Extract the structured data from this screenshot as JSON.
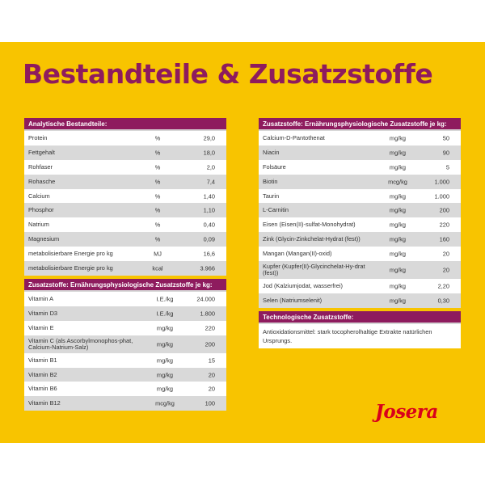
{
  "title": "Bestandteile & Zusatzstoffe",
  "logo": "Josera",
  "colors": {
    "background": "#f8c400",
    "header": "#8e1b5e",
    "logo": "#d9001b",
    "row_alt": "#d9d9d9"
  },
  "analytic": {
    "header": "Analytische Bestandteile:",
    "rows": [
      {
        "name": "Protein",
        "unit": "%",
        "value": "29,0"
      },
      {
        "name": "Fettgehalt",
        "unit": "%",
        "value": "18,0"
      },
      {
        "name": "Rohfaser",
        "unit": "%",
        "value": "2,0"
      },
      {
        "name": "Rohasche",
        "unit": "%",
        "value": "7,4"
      },
      {
        "name": "Calcium",
        "unit": "%",
        "value": "1,40"
      },
      {
        "name": "Phosphor",
        "unit": "%",
        "value": "1,10"
      },
      {
        "name": "Natrium",
        "unit": "%",
        "value": "0,40"
      },
      {
        "name": "Magnesium",
        "unit": "%",
        "value": "0,09"
      },
      {
        "name": "metabolisierbare Energie pro kg",
        "unit": "MJ",
        "value": "16,6"
      },
      {
        "name": "metabolisierbare Energie pro kg",
        "unit": "kcal",
        "value": "3.966"
      }
    ]
  },
  "vitamins": {
    "header": "Zusatzstoffe: Ernährungsphysiologische Zusatzstoffe je kg:",
    "rows": [
      {
        "name": "Vitamin A",
        "unit": "I.E./kg",
        "value": "24.000"
      },
      {
        "name": "Vitamin D3",
        "unit": "I.E./kg",
        "value": "1.800"
      },
      {
        "name": "Vitamin E",
        "unit": "mg/kg",
        "value": "220"
      },
      {
        "name": "Vitamin C (als Ascorbylmonophos-phat, Calcium-Natrium-Salz)",
        "unit": "mg/kg",
        "value": "200"
      },
      {
        "name": "Vitamin B1",
        "unit": "mg/kg",
        "value": "15"
      },
      {
        "name": "Vitamin B2",
        "unit": "mg/kg",
        "value": "20"
      },
      {
        "name": "Vitamin B6",
        "unit": "mg/kg",
        "value": "20"
      },
      {
        "name": "Vitamin B12",
        "unit": "mcg/kg",
        "value": "100"
      }
    ]
  },
  "additives": {
    "header": "Zusatzstoffe: Ernährungsphysiologische Zusatzstoffe je kg:",
    "rows": [
      {
        "name": "Calcium-D-Pantothenat",
        "unit": "mg/kg",
        "value": "50"
      },
      {
        "name": "Niacin",
        "unit": "mg/kg",
        "value": "90"
      },
      {
        "name": "Folsäure",
        "unit": "mg/kg",
        "value": "5"
      },
      {
        "name": "Biotin",
        "unit": "mcg/kg",
        "value": "1.000"
      },
      {
        "name": "Taurin",
        "unit": "mg/kg",
        "value": "1.000"
      },
      {
        "name": "L-Carnitin",
        "unit": "mg/kg",
        "value": "200"
      },
      {
        "name": "Eisen (Eisen(II)-sulfat-Monohydrat)",
        "unit": "mg/kg",
        "value": "220"
      },
      {
        "name": "Zink (Glycin-Zinkchelat-Hydrat (fest))",
        "unit": "mg/kg",
        "value": "160"
      },
      {
        "name": "Mangan (Mangan(II)-oxid)",
        "unit": "mg/kg",
        "value": "20"
      },
      {
        "name": "Kupfer (Kupfer(II)-Glycinchelat-Hy-drat (fest))",
        "unit": "mg/kg",
        "value": "20"
      },
      {
        "name": "Jod (Kalziumjodat, wasserfrei)",
        "unit": "mg/kg",
        "value": "2,20"
      },
      {
        "name": "Selen (Natriumselenit)",
        "unit": "mg/kg",
        "value": "0,30"
      }
    ]
  },
  "technological": {
    "header": "Technologische Zusatzstoffe:",
    "text": "Antioxidationsmittel: stark tocopherolhaltige Extrakte natürlichen Ursprungs."
  }
}
